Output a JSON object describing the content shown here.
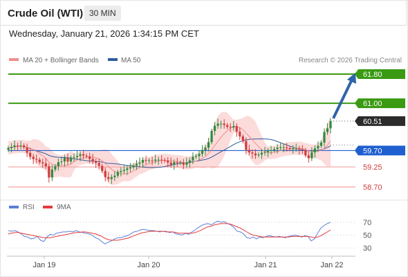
{
  "header": {
    "title": "Crude Oil (WTI)",
    "timeframe": "30 MIN",
    "datetime": "Wednesday, January 21, 2026 1:34:15 PM CET"
  },
  "legend": {
    "ma20": "MA 20 + Bollinger Bands",
    "ma50": "MA 50",
    "credit": "Research © 2026 Trading Central",
    "rsi": "RSI",
    "rsi_ma": "9MA"
  },
  "colors": {
    "ma20": "#f08c8c",
    "ma50": "#2e5b9e",
    "bb_fill": "#fbd5d5",
    "resistance": "#3a9a12",
    "pivot": "#1f5fd0",
    "support": "#f3a0a0",
    "up_candle": "#2e8b3e",
    "down_candle": "#d23b3b",
    "arrow": "#2e64a8",
    "current": "#2b2b2b",
    "rsi": "#5b7fd6",
    "rsi_ma": "#e33b3b"
  },
  "chart_data": [
    {
      "type": "candlestick",
      "y_scale": "price",
      "x_ticks": [
        "Jan 19",
        "Jan 20",
        "Jan 21",
        "Jan 22"
      ],
      "levels": [
        {
          "value": 61.8,
          "label": "61.80",
          "kind": "resistance"
        },
        {
          "value": 61.0,
          "label": "61.00",
          "kind": "resistance"
        },
        {
          "value": 60.51,
          "label": "60.51",
          "kind": "current"
        },
        {
          "value": 59.7,
          "label": "59.70",
          "kind": "pivot"
        },
        {
          "value": 59.25,
          "label": "59.25",
          "kind": "support"
        },
        {
          "value": 58.7,
          "label": "58.70",
          "kind": "support"
        }
      ],
      "close_series": [
        59.77,
        59.8,
        59.84,
        59.83,
        59.84,
        59.79,
        59.64,
        59.53,
        59.47,
        59.45,
        59.38,
        59.35,
        59.27,
        58.96,
        59.18,
        59.27,
        59.38,
        59.4,
        59.5,
        59.4,
        59.51,
        59.52,
        59.55,
        59.6,
        59.56,
        59.54,
        59.47,
        59.4,
        59.36,
        59.28,
        59.14,
        58.97,
        58.92,
        58.97,
        59.01,
        59.11,
        59.14,
        59.17,
        59.21,
        59.24,
        59.29,
        59.34,
        59.37,
        59.44,
        59.42,
        59.43,
        59.42,
        59.45,
        59.45,
        59.44,
        59.42,
        59.37,
        59.31,
        59.38,
        59.36,
        59.37,
        59.31,
        59.37,
        59.43,
        59.53,
        59.55,
        59.61,
        59.71,
        59.78,
        59.93,
        60.24,
        60.38,
        60.44,
        60.44,
        60.4,
        60.35,
        60.33,
        60.37,
        60.22,
        60.09,
        59.96,
        59.72,
        59.65,
        59.62,
        59.57,
        59.59,
        59.64,
        59.66,
        59.69,
        59.71,
        59.74,
        59.78,
        59.79,
        59.79,
        59.77,
        59.74,
        59.75,
        59.75,
        59.73,
        59.71,
        59.57,
        59.49,
        59.65,
        59.76,
        59.83,
        59.92,
        60.21,
        60.31,
        60.51
      ],
      "bands": {
        "upper_at": {
          "Jan 19": 59.9,
          "Jan 21": 60.8
        },
        "lower_at": {
          "Jan 19": 59.2,
          "Jan 21": 58.9
        }
      },
      "forecast_arrow": {
        "from": 60.51,
        "to": 61.8
      }
    },
    {
      "type": "line",
      "name": "RSI",
      "y_ticks": [
        70,
        50,
        30
      ],
      "series": [
        {
          "name": "RSI",
          "values": [
            57,
            56,
            57,
            55,
            52,
            48,
            47,
            44,
            45,
            48,
            42,
            40,
            47,
            51,
            50,
            53,
            54,
            55,
            55,
            56,
            55,
            57,
            55,
            54,
            53,
            52,
            50,
            46,
            44,
            40,
            36,
            39,
            41,
            44,
            46,
            46,
            48,
            49,
            52,
            55,
            56,
            58,
            59,
            58,
            57,
            57,
            56,
            55,
            56,
            56,
            54,
            55,
            52,
            51,
            50,
            53,
            51,
            55,
            58,
            62,
            65,
            67,
            68,
            66,
            69,
            72,
            70,
            71,
            68,
            66,
            62,
            56,
            55,
            52,
            46,
            45,
            47,
            44,
            47,
            46,
            48,
            49,
            48,
            47,
            48,
            47,
            46,
            48,
            49,
            50,
            49,
            47,
            49,
            48,
            41,
            44,
            53,
            61,
            65,
            68,
            70
          ]
        },
        {
          "name": "9MA",
          "values": [
            52,
            53,
            54,
            54,
            53,
            52,
            51,
            50,
            49,
            48,
            47,
            46,
            46,
            46,
            47,
            48,
            49,
            50,
            51,
            52,
            53,
            54,
            54,
            55,
            55,
            54,
            53,
            52,
            50,
            48,
            45,
            43,
            42,
            42,
            42,
            43,
            44,
            45,
            47,
            49,
            51,
            53,
            54,
            55,
            56,
            56,
            56,
            56,
            56,
            55,
            55,
            55,
            54,
            53,
            53,
            53,
            53,
            53,
            54,
            56,
            58,
            61,
            63,
            64,
            66,
            67,
            68,
            68,
            68,
            67,
            65,
            63,
            61,
            58,
            55,
            52,
            50,
            49,
            48,
            47,
            47,
            47,
            47,
            47,
            47,
            47,
            47,
            47,
            48,
            48,
            48,
            48,
            48,
            48,
            47,
            46,
            47,
            49,
            52,
            55,
            58
          ]
        }
      ]
    }
  ]
}
